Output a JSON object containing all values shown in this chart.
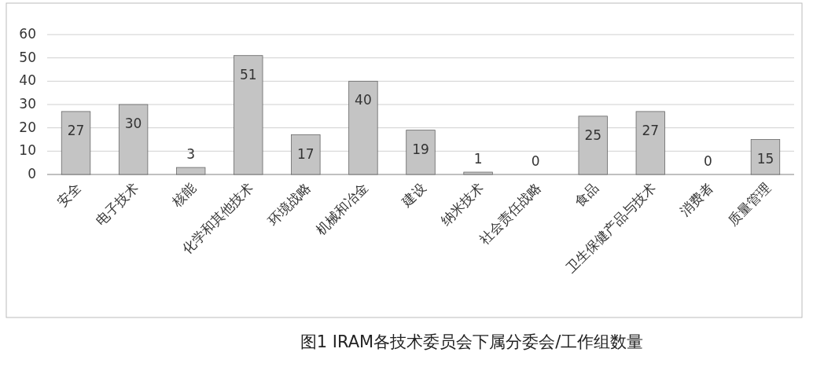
{
  "chart_data": {
    "type": "bar",
    "title": "图1 IRAM各技术委员会下属分委会/工作组数量",
    "categories": [
      "安全",
      "电子技术",
      "核能",
      "化学和其他技术",
      "环境战略",
      "机械和冶金",
      "建设",
      "纳米技术",
      "社会责任战略",
      "食品",
      "卫生保健产品与技术",
      "消费者",
      "质量管理"
    ],
    "values": [
      27,
      30,
      3,
      51,
      17,
      40,
      19,
      1,
      0,
      25,
      27,
      0,
      15
    ],
    "color": "#c4c4c4",
    "ylim": [
      0,
      60
    ],
    "yticks": [
      0,
      10,
      20,
      30,
      40,
      50,
      60
    ],
    "grid": "y",
    "data_labels": true
  }
}
